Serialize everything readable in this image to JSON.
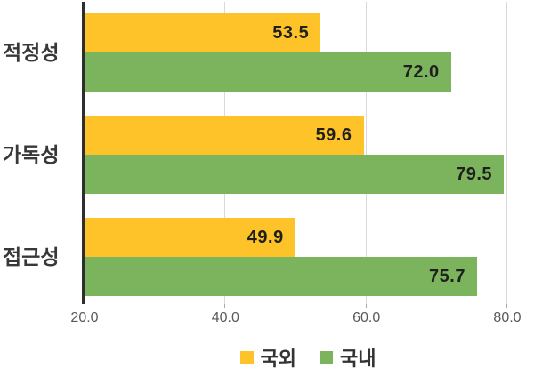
{
  "chart_data": {
    "type": "bar",
    "orientation": "horizontal",
    "title": "",
    "categories": [
      "적정성",
      "가독성",
      "접근성"
    ],
    "series": [
      {
        "name": "국외",
        "color": "#FDC328",
        "values": [
          53.5,
          59.6,
          49.9
        ]
      },
      {
        "name": "국내",
        "color": "#7CB45E",
        "values": [
          72.0,
          79.5,
          75.7
        ]
      }
    ],
    "x_axis": {
      "min": 20,
      "max": 80,
      "tick_values": [
        20,
        40,
        60,
        80
      ],
      "tick_labels": [
        "20.0",
        "40.0",
        "60.0",
        "80.0"
      ]
    },
    "value_label_decimals": 1,
    "grid": true,
    "legend": {
      "position": "bottom",
      "items": [
        "국외",
        "국내"
      ]
    }
  },
  "colors": {
    "background": "#ffffff",
    "axis_line": "#2e2e2e",
    "gridline": "#d9d9d9",
    "tick_label": "#595959",
    "category_label": "#383838",
    "value_label": "#1f1f1f",
    "legend_label": "#333333"
  }
}
